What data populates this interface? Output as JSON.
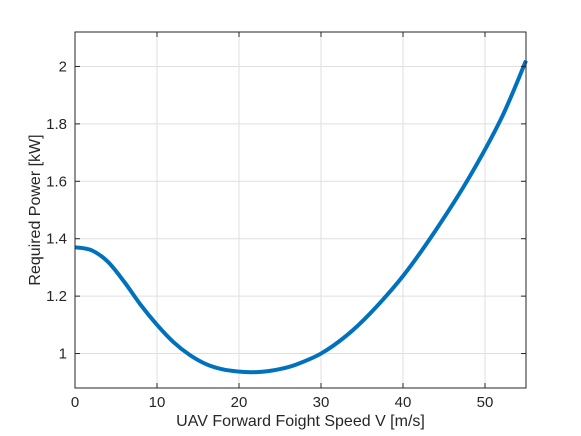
{
  "chart_data": {
    "type": "line",
    "xlabel": "UAV Forward Foight Speed V [m/s]",
    "ylabel": "Required Power [kW]",
    "xlim": [
      0,
      55
    ],
    "ylim": [
      0.88,
      2.12
    ],
    "xticks": [
      0,
      10,
      20,
      30,
      40,
      50
    ],
    "yticks": [
      1,
      1.2,
      1.4,
      1.6,
      1.8,
      2
    ],
    "ytick_labels": [
      "1",
      "1.2",
      "1.4",
      "1.6",
      "1.8",
      "2"
    ],
    "grid": true,
    "series": [
      {
        "color": "#0072bd",
        "x": [
          0,
          2,
          4,
          6,
          8,
          10,
          12,
          14,
          16,
          18,
          20,
          21.5,
          23,
          25,
          27,
          30,
          33,
          36,
          40,
          44,
          48,
          52,
          55
        ],
        "y": [
          1.37,
          1.36,
          1.32,
          1.25,
          1.17,
          1.1,
          1.04,
          0.995,
          0.963,
          0.945,
          0.937,
          0.935,
          0.937,
          0.946,
          0.962,
          1.0,
          1.06,
          1.14,
          1.27,
          1.43,
          1.61,
          1.82,
          2.02
        ]
      }
    ]
  }
}
